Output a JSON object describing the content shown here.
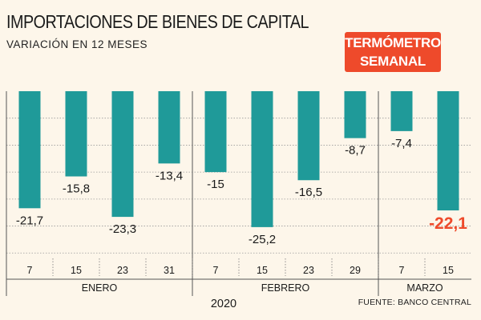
{
  "title": "IMPORTACIONES DE BIENES DE CAPITAL",
  "subtitle": "VARIACIÓN EN 12 MESES",
  "badge": {
    "line1": "TERMÓMETRO",
    "line2": "SEMANAL",
    "color": "#ee4a2b"
  },
  "source": "FUENTE: BANCO CENTRAL",
  "colors": {
    "bar": "#1f9a99",
    "highlight": "#ee4a2b",
    "grid": "#9a9a9a",
    "background": "#fdf6ea"
  },
  "chart_data": {
    "type": "bar",
    "title": "IMPORTACIONES DE BIENES DE CAPITAL",
    "subtitle": "VARIACIÓN EN 12 MESES",
    "xlabel": "2020",
    "ylabel": "",
    "ylim": [
      -31,
      0
    ],
    "grid": true,
    "categories": [
      "7",
      "15",
      "23",
      "31",
      "7",
      "15",
      "23",
      "29",
      "7",
      "15"
    ],
    "values": [
      -21.7,
      -15.8,
      -23.3,
      -13.4,
      -15,
      -25.2,
      -16.5,
      -8.7,
      -7.4,
      -22.1
    ],
    "labels": [
      "-21,7",
      "-15,8",
      "-23,3",
      "-13,4",
      "-15",
      "-25,2",
      "-16,5",
      "-8,7",
      "-7,4",
      "-22,1"
    ],
    "highlight_index": 9,
    "groups": [
      {
        "name": "ENERO",
        "count": 4
      },
      {
        "name": "FEBRERO",
        "count": 4
      },
      {
        "name": "MARZO",
        "count": 2
      }
    ],
    "year": "2020"
  }
}
